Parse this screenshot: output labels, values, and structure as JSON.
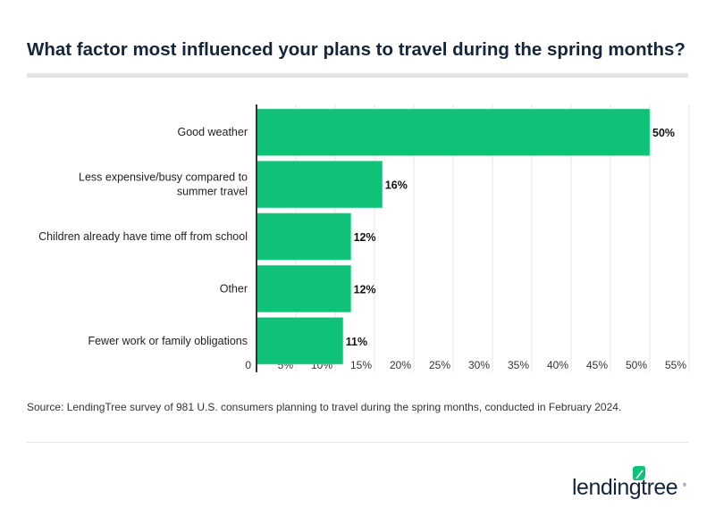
{
  "title": "What factor most influenced your plans to travel during the spring months?",
  "source": "Source: LendingTree survey of 981 U.S. consumers planning to travel during the spring months, conducted in February 2024.",
  "logo": "lendingtree",
  "colors": {
    "bar": "#0fc278",
    "title": "#15263a",
    "grid": "#e6e6e6"
  },
  "chart_data": {
    "type": "bar",
    "orientation": "horizontal",
    "categories": [
      [
        "Good weather"
      ],
      [
        "Less expensive/busy compared to",
        "summer travel"
      ],
      [
        "Children already have time off from school"
      ],
      [
        "Other"
      ],
      [
        "Fewer work or family obligations"
      ]
    ],
    "values": [
      50,
      16,
      12,
      12,
      11
    ],
    "data_labels": [
      "50%",
      "16%",
      "12%",
      "12%",
      "11%"
    ],
    "xlim": [
      0,
      55
    ],
    "xticks": [
      0,
      5,
      10,
      15,
      20,
      25,
      30,
      35,
      40,
      45,
      50,
      55
    ],
    "xtick_labels": [
      "0",
      "5%",
      "10%",
      "15%",
      "20%",
      "25%",
      "30%",
      "35%",
      "40%",
      "45%",
      "50%",
      "55%"
    ],
    "grid": true
  }
}
